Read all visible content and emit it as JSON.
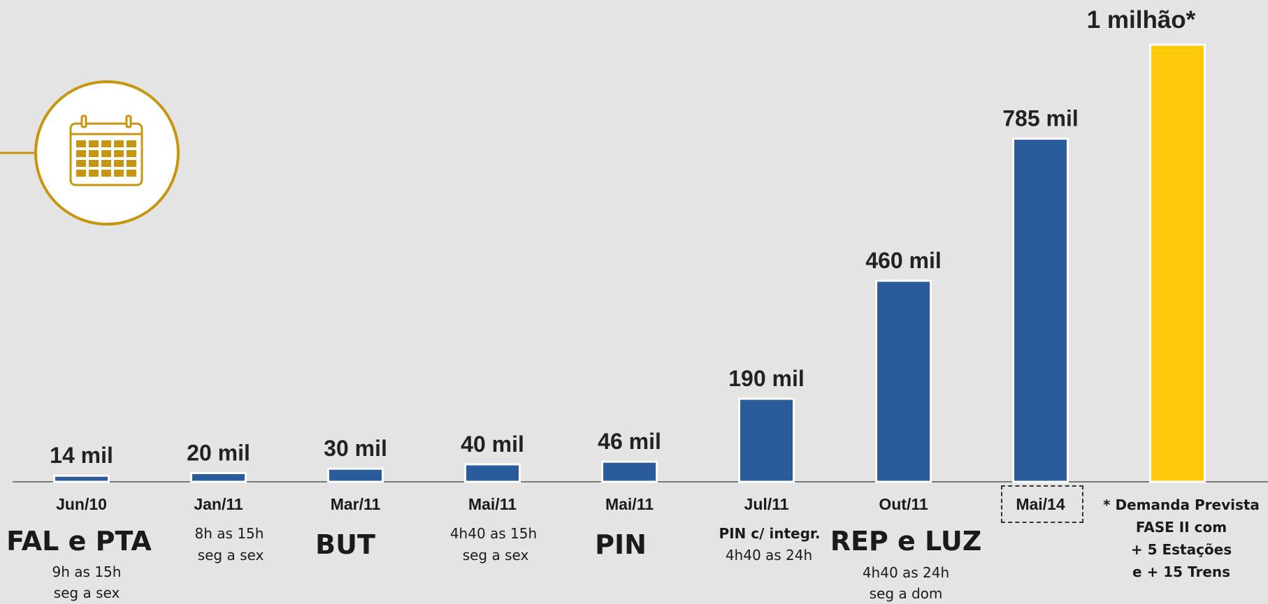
{
  "chart_data": {
    "type": "bar",
    "title": "",
    "xlabel": "",
    "ylabel": "",
    "ylim": [
      0,
      1000
    ],
    "categories": [
      "Jun/10",
      "Jan/11",
      "Mar/11",
      "Mai/11",
      "Mai/11",
      "Jul/11",
      "Out/11",
      "Mai/14",
      ""
    ],
    "values": [
      14,
      20,
      30,
      40,
      46,
      190,
      460,
      785,
      1000
    ],
    "value_labels": [
      "14 mil",
      "20 mil",
      "30 mil",
      "40 mil",
      "46 mil",
      "190 mil",
      "460 mil",
      "785 mil",
      "1 milhão*"
    ],
    "colors": [
      "#2a5c9b",
      "#2a5c9b",
      "#2a5c9b",
      "#2a5c9b",
      "#2a5c9b",
      "#2a5c9b",
      "#2a5c9b",
      "#2a5c9b",
      "#ffc90a"
    ],
    "highlighted_category": "Mai/14",
    "grid": false,
    "legend": "none"
  },
  "annotations": {
    "a0": {
      "station": "FAL  e PTA",
      "hours": "9h as 15h",
      "days": "seg a sex"
    },
    "a1": {
      "hours": "8h as 15h",
      "days": "seg a sex"
    },
    "a2": {
      "station": "BUT"
    },
    "a3": {
      "hours": "4h40 as 15h",
      "days": "seg a sex"
    },
    "a4": {
      "station": "PIN"
    },
    "a5": {
      "station": "PIN c/ integr.",
      "hours": "4h40 as 24h"
    },
    "a6": {
      "station": "REP e LUZ",
      "hours": "4h40 as 24h",
      "days": "seg a dom"
    }
  },
  "note": {
    "line1": "* Demanda Prevista",
    "line2": "FASE II com",
    "line3": "+ 5 Estações",
    "line4": "e + 15 Trens"
  },
  "icon": "calendar-icon",
  "colors": {
    "bar": "#2a5c9b",
    "forecast_bar": "#ffc90a",
    "accent": "#c8950f",
    "background": "#e4e4e4"
  }
}
